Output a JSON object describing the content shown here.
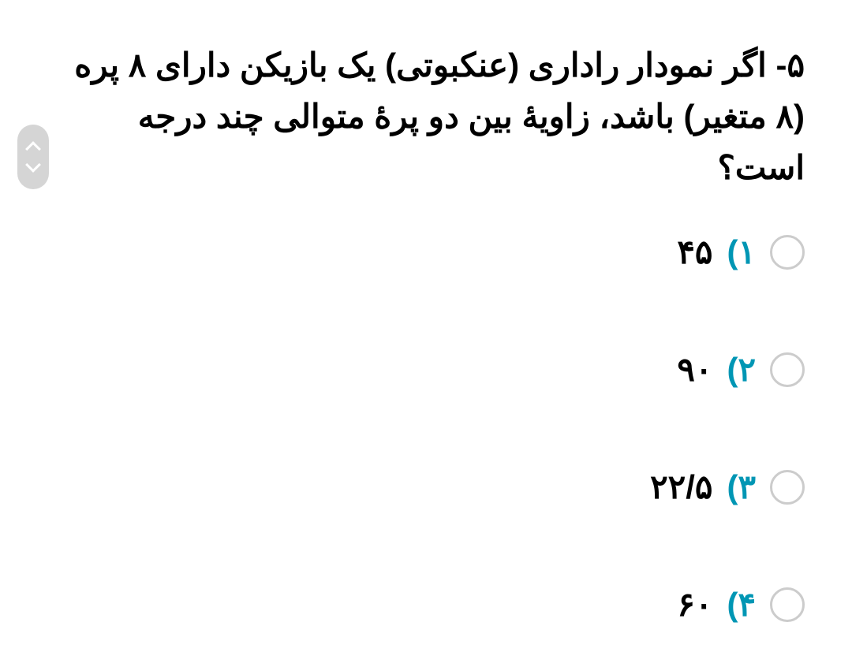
{
  "question": {
    "number": "۵-",
    "text": "اگر نمودار راداری (عنکبوتی) یک بازیکن دارای ۸ پره (۸ متغیر) باشد، زاویهٔ بین دو پرهٔ متوالی چند درجه است؟"
  },
  "options": [
    {
      "num": "۱)",
      "text": "۴۵"
    },
    {
      "num": "۲)",
      "text": "۹۰"
    },
    {
      "num": "۳)",
      "text": "۲۲/۵"
    },
    {
      "num": "۴)",
      "text": "۶۰"
    }
  ],
  "colors": {
    "option_number": "#0096b4",
    "text": "#000000",
    "radio_border": "#cccccc",
    "scroll_bg": "#d5d5d5",
    "background": "#ffffff"
  },
  "typography": {
    "question_fontsize": 42,
    "option_fontsize": 42,
    "weight": 900
  }
}
